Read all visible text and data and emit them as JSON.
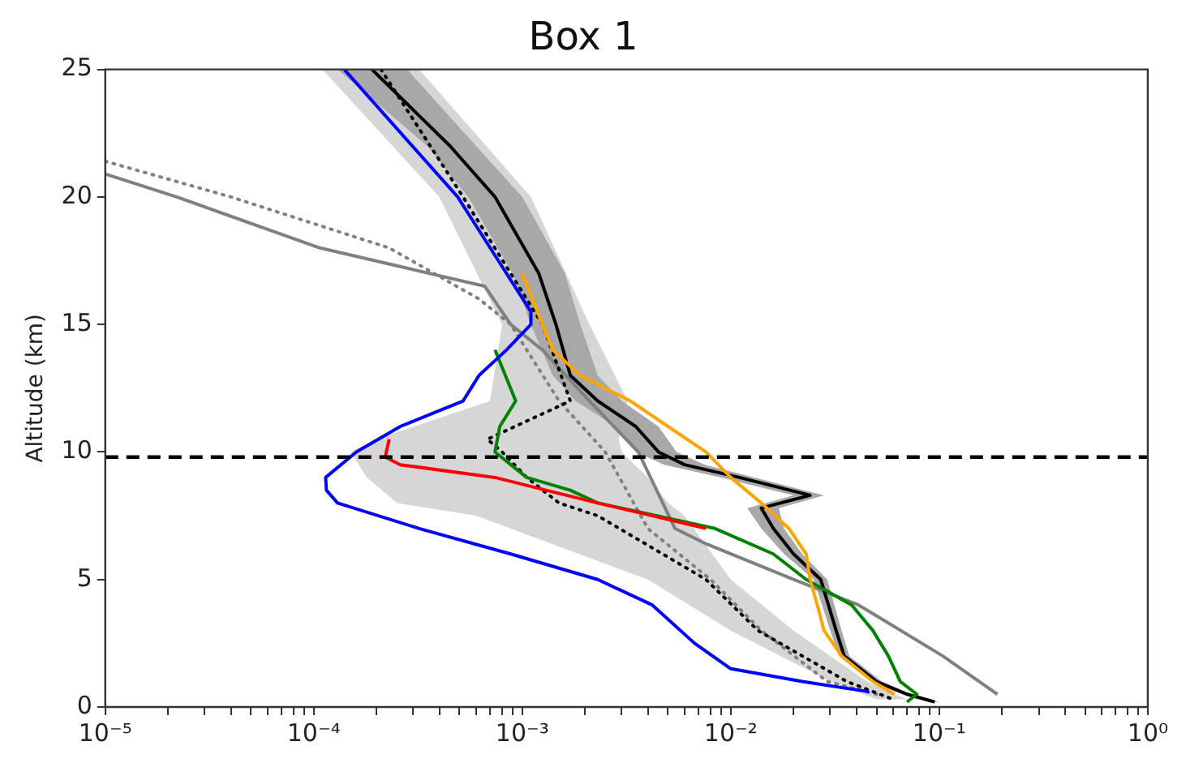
{
  "chart_data": {
    "type": "line",
    "title": "Box 1",
    "ylabel": "Altitude (km)",
    "log": "x",
    "marker": "none",
    "legend": false,
    "xlim": [
      1e-05,
      1
    ],
    "ylim": [
      0,
      25
    ],
    "xticks": [
      {
        "value": 1e-05,
        "label": "10⁻⁵"
      },
      {
        "value": 2e-05,
        "label": null
      },
      {
        "value": 3e-05,
        "label": null
      },
      {
        "value": 4e-05,
        "label": null
      },
      {
        "value": 5e-05,
        "label": null
      },
      {
        "value": 6e-05,
        "label": null
      },
      {
        "value": 7e-05,
        "label": null
      },
      {
        "value": 8e-05,
        "label": null
      },
      {
        "value": 9e-05,
        "label": null
      },
      {
        "value": 0.0001,
        "label": "10⁻⁴"
      },
      {
        "value": 0.0002,
        "label": null
      },
      {
        "value": 0.0003,
        "label": null
      },
      {
        "value": 0.0004,
        "label": null
      },
      {
        "value": 0.0005,
        "label": null
      },
      {
        "value": 0.0006,
        "label": null
      },
      {
        "value": 0.0007,
        "label": null
      },
      {
        "value": 0.0008,
        "label": null
      },
      {
        "value": 0.0009,
        "label": null
      },
      {
        "value": 0.001,
        "label": "10⁻³"
      },
      {
        "value": 0.002,
        "label": null
      },
      {
        "value": 0.003,
        "label": null
      },
      {
        "value": 0.004,
        "label": null
      },
      {
        "value": 0.005,
        "label": null
      },
      {
        "value": 0.006,
        "label": null
      },
      {
        "value": 0.007,
        "label": null
      },
      {
        "value": 0.008,
        "label": null
      },
      {
        "value": 0.009,
        "label": null
      },
      {
        "value": 0.01,
        "label": "10⁻²"
      },
      {
        "value": 0.02,
        "label": null
      },
      {
        "value": 0.03,
        "label": null
      },
      {
        "value": 0.04,
        "label": null
      },
      {
        "value": 0.05,
        "label": null
      },
      {
        "value": 0.06,
        "label": null
      },
      {
        "value": 0.07,
        "label": null
      },
      {
        "value": 0.08,
        "label": null
      },
      {
        "value": 0.09,
        "label": null
      },
      {
        "value": 0.1,
        "label": "10⁻¹"
      },
      {
        "value": 0.2,
        "label": null
      },
      {
        "value": 0.3,
        "label": null
      },
      {
        "value": 0.4,
        "label": null
      },
      {
        "value": 0.5,
        "label": null
      },
      {
        "value": 0.6,
        "label": null
      },
      {
        "value": 0.7,
        "label": null
      },
      {
        "value": 0.8,
        "label": null
      },
      {
        "value": 0.9,
        "label": null
      },
      {
        "value": 1,
        "label": "10⁰"
      }
    ],
    "yticks": [
      0,
      5,
      10,
      15,
      20,
      25
    ],
    "ref_lines": [
      {
        "axis": "y",
        "value": 9.8,
        "color": "#000000",
        "line_style": "dashed"
      }
    ],
    "series": [
      {
        "type": "area",
        "color": "#d6d6d6",
        "values": [
          25,
          20,
          15,
          12,
          10.5,
          10,
          9,
          8,
          7.5,
          5,
          3,
          1,
          0.3,
          0.3,
          1,
          3,
          5,
          7.5,
          8,
          9,
          10,
          10.5,
          12,
          15,
          20,
          25
        ],
        "x": [
          0.00011,
          0.0004,
          0.0008,
          0.0007,
          0.0002,
          0.00015,
          0.00018,
          0.00025,
          0.0006,
          0.004,
          0.01,
          0.03,
          0.05,
          0.07,
          0.045,
          0.02,
          0.01,
          0.006,
          0.005,
          0.004,
          0.003,
          0.0029,
          0.0032,
          0.0021,
          0.0011,
          0.00032
        ]
      },
      {
        "type": "area",
        "color": "#a8a8a8",
        "values": [
          25,
          22,
          20,
          17,
          15,
          13,
          12,
          11,
          10,
          9.5,
          9,
          8.3,
          7.8,
          7,
          6,
          5,
          3,
          2,
          1,
          0.5,
          0.2,
          0.2,
          0.5,
          1,
          2,
          3,
          5,
          6,
          7,
          7.8,
          8.3,
          9,
          9.5,
          10,
          11,
          12,
          13,
          15,
          17,
          20,
          22,
          25
        ],
        "x": [
          0.00013,
          0.00035,
          0.00055,
          0.0009,
          0.0011,
          0.0014,
          0.0018,
          0.0028,
          0.0035,
          0.0048,
          0.009,
          0.02,
          0.012,
          0.014,
          0.018,
          0.025,
          0.03,
          0.033,
          0.047,
          0.066,
          0.09,
          0.1,
          0.074,
          0.053,
          0.037,
          0.034,
          0.029,
          0.022,
          0.018,
          0.017,
          0.028,
          0.013,
          0.0075,
          0.0055,
          0.0045,
          0.003,
          0.0023,
          0.0019,
          0.0016,
          0.001,
          0.0006,
          0.00028
        ]
      },
      {
        "color": "#808080",
        "line_style": "solid",
        "values": [
          20.9,
          20,
          18,
          16.5,
          15,
          14,
          12,
          10,
          7,
          6.4,
          5,
          4,
          2,
          0.5
        ],
        "x": [
          1e-05,
          2.2e-05,
          0.000107,
          0.00066,
          0.00088,
          0.00125,
          0.0021,
          0.0036,
          0.0054,
          0.0076,
          0.02,
          0.041,
          0.104,
          0.19
        ]
      },
      {
        "color": "#808080",
        "line_style": "dotted",
        "values": [
          21.4,
          20,
          18,
          16,
          15,
          12,
          10,
          7,
          5,
          3,
          1,
          0.5
        ],
        "x": [
          1e-05,
          4e-05,
          0.00023,
          0.00062,
          0.00088,
          0.0015,
          0.0025,
          0.004,
          0.008,
          0.014,
          0.029,
          0.05
        ]
      },
      {
        "color": "#000000",
        "line_style": "solid",
        "values": [
          25,
          22,
          20,
          17,
          15,
          13,
          12,
          11,
          10,
          9.5,
          9,
          8.3,
          7.8,
          7,
          6,
          5,
          3,
          2,
          1,
          0.5,
          0.2
        ],
        "x": [
          0.00019,
          0.00045,
          0.00074,
          0.0012,
          0.00145,
          0.0017,
          0.0023,
          0.0035,
          0.0045,
          0.006,
          0.011,
          0.024,
          0.014,
          0.016,
          0.02,
          0.027,
          0.032,
          0.035,
          0.05,
          0.07,
          0.095
        ]
      },
      {
        "color": "#000000",
        "line_style": "dotted",
        "values": [
          25,
          20,
          15,
          12,
          10.5,
          10,
          9,
          8,
          7.5,
          5,
          3,
          1,
          0.3
        ],
        "x": [
          0.00021,
          0.00052,
          0.00125,
          0.0017,
          0.00068,
          0.0008,
          0.00105,
          0.0015,
          0.0023,
          0.0076,
          0.0135,
          0.036,
          0.06
        ]
      },
      {
        "color": "#008000",
        "line_style": "solid",
        "values": [
          14,
          12,
          11,
          10,
          9,
          8.5,
          8,
          7,
          6,
          5,
          4,
          3,
          2,
          1,
          0.5,
          0.2
        ],
        "x": [
          0.00074,
          0.00093,
          0.00078,
          0.00074,
          0.00105,
          0.0017,
          0.0023,
          0.0084,
          0.016,
          0.023,
          0.038,
          0.048,
          0.057,
          0.065,
          0.078,
          0.07
        ]
      },
      {
        "color": "#ffa500",
        "line_style": "solid",
        "values": [
          17,
          15,
          14,
          13,
          12.5,
          12,
          11,
          10,
          9,
          8,
          7,
          6,
          5,
          4,
          3,
          2,
          1,
          0.5
        ],
        "x": [
          0.001,
          0.00125,
          0.0014,
          0.0019,
          0.0025,
          0.0033,
          0.005,
          0.0076,
          0.01,
          0.014,
          0.019,
          0.023,
          0.024,
          0.026,
          0.028,
          0.034,
          0.048,
          0.061
        ]
      },
      {
        "color": "#ff0000",
        "line_style": "solid",
        "values": [
          10.5,
          9.8,
          9.5,
          9,
          8.5,
          8,
          7.5,
          7
        ],
        "x": [
          0.00023,
          0.00022,
          0.00026,
          0.00074,
          0.0013,
          0.0023,
          0.0042,
          0.0076
        ]
      },
      {
        "color": "#0000ff",
        "line_style": "solid",
        "values": [
          25,
          20,
          17,
          15.5,
          15,
          14,
          13,
          12,
          11,
          10,
          9,
          8.5,
          8,
          7,
          6,
          5,
          4,
          2.5,
          1.5,
          1,
          0.6
        ],
        "x": [
          0.00014,
          0.00049,
          0.00084,
          0.0011,
          0.0011,
          0.00084,
          0.00062,
          0.00052,
          0.00026,
          0.00016,
          0.000114,
          0.000115,
          0.00013,
          0.00032,
          0.00088,
          0.0023,
          0.0042,
          0.0067,
          0.01,
          0.022,
          0.046
        ]
      }
    ]
  }
}
